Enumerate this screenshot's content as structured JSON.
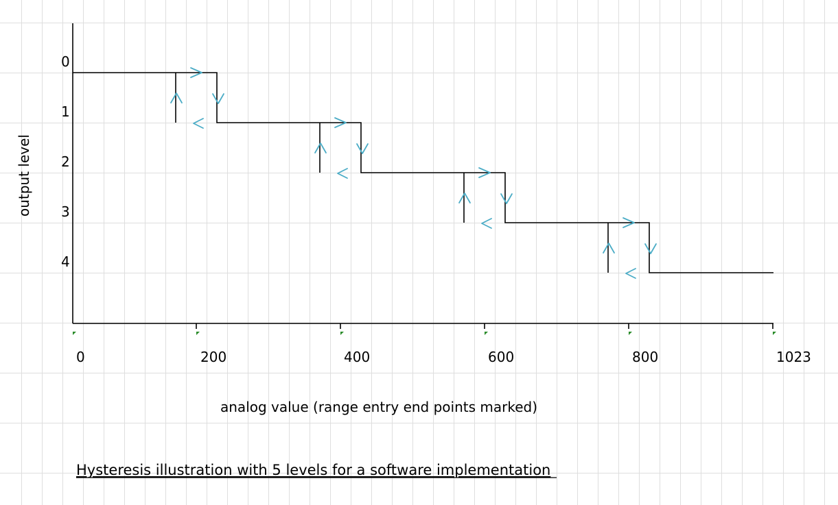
{
  "diagram": {
    "y_axis_title": "output level",
    "x_axis_title": "analog value (range entry end points marked)",
    "caption": "Hysteresis illustration with 5 levels for a software implementation",
    "y_levels": [
      "0",
      "1",
      "2",
      "3",
      "4"
    ],
    "x_ticks": [
      "0",
      "200",
      "400",
      "600",
      "800",
      "1023"
    ],
    "colors": {
      "lines": "#000000",
      "arrows": "#4bacc6",
      "gridlines": "#dedede"
    }
  }
}
